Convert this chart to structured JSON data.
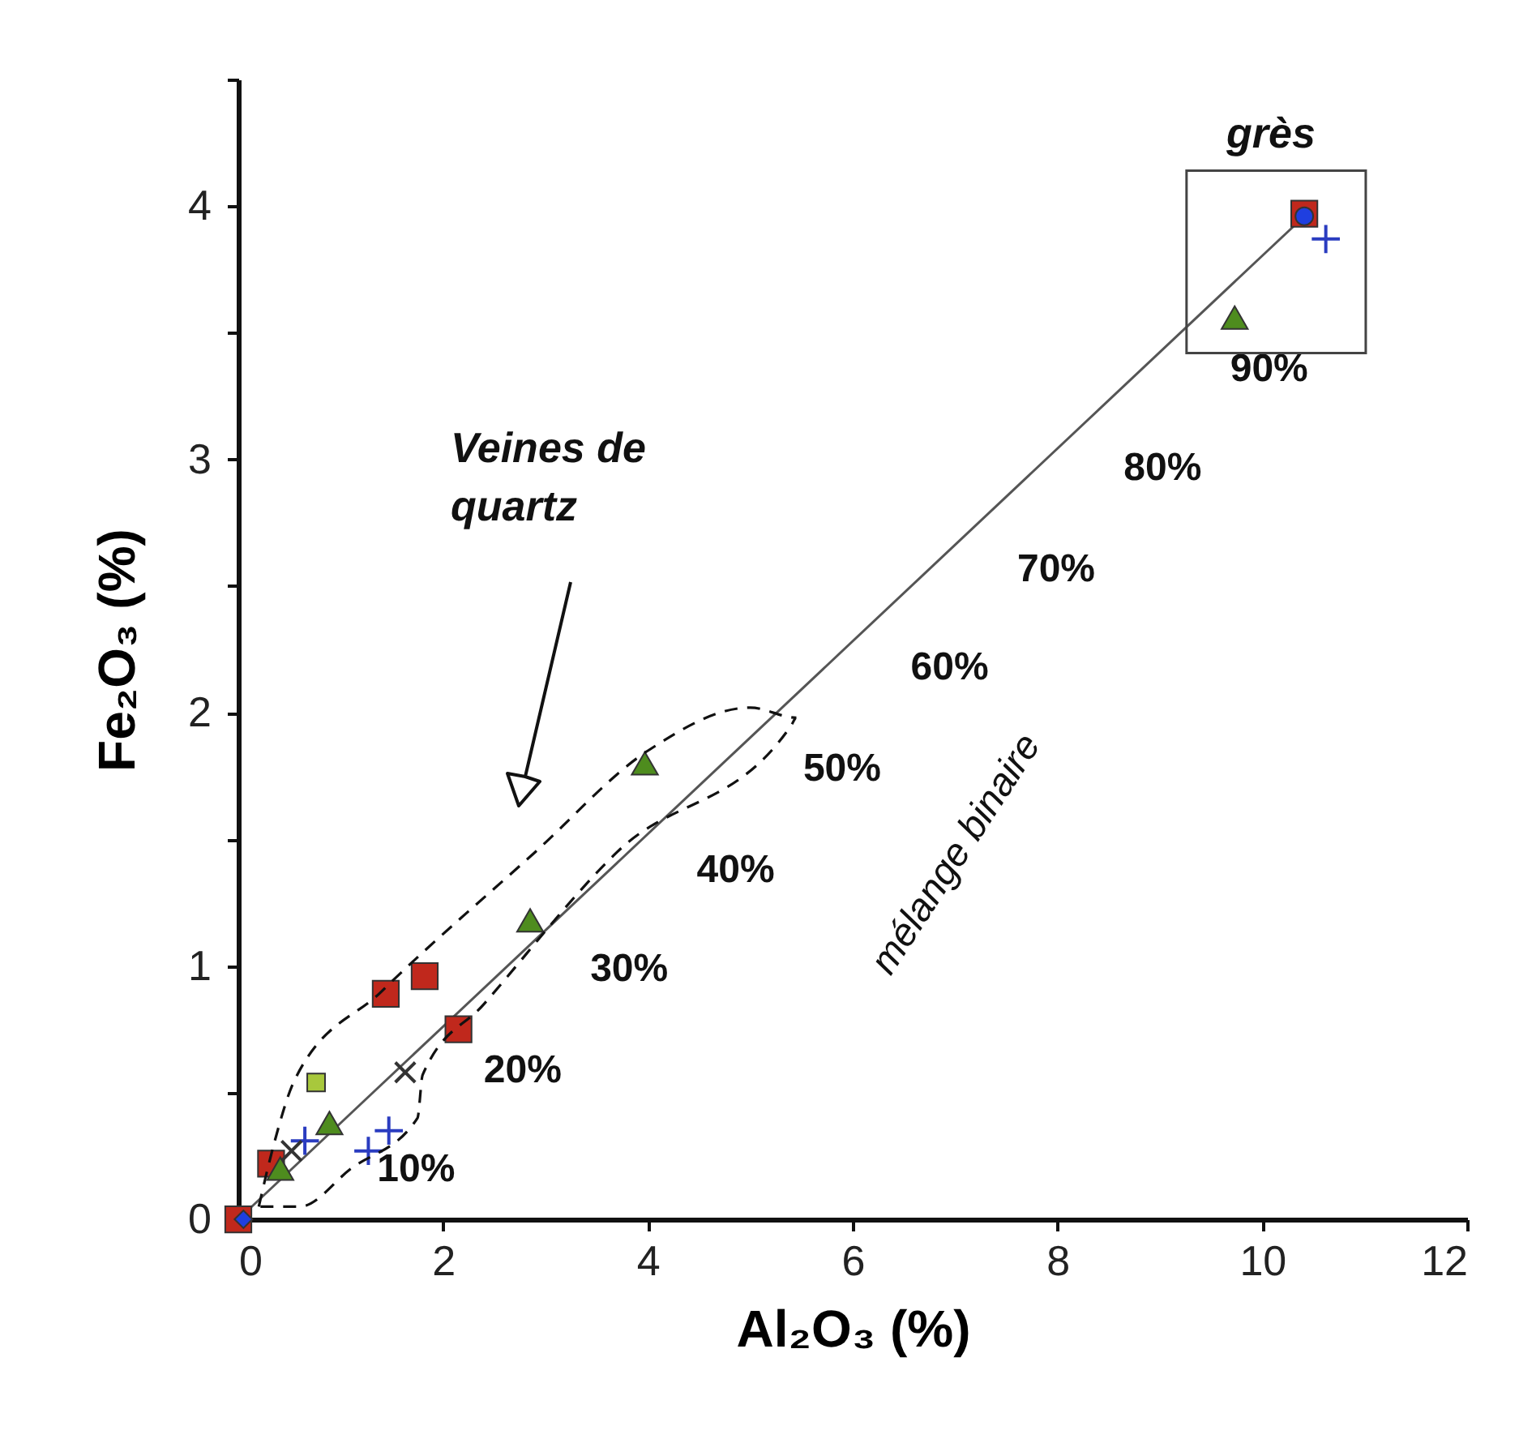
{
  "chart_data": {
    "type": "scatter",
    "xlabel": "Al₂O₃ (%)",
    "ylabel": "Fe₂O₃ (%)",
    "xlim": [
      0,
      12
    ],
    "xticks": [
      0,
      2,
      4,
      6,
      8,
      10,
      12
    ],
    "ylim": [
      0,
      4.5
    ],
    "yticks": [
      0,
      {
        "value": 0.5,
        "label": null
      },
      1,
      {
        "value": 1.5,
        "label": null
      },
      2,
      {
        "value": 2.5,
        "label": null
      },
      3,
      {
        "value": 3.5,
        "label": null
      },
      4,
      {
        "value": 4.5,
        "label": null
      }
    ],
    "grid": false,
    "series": [
      {
        "type": "line",
        "color": "#555555",
        "marker": "none",
        "line_style": "solid",
        "x": [
          0,
          10.41
        ],
        "values": [
          0,
          3.96
        ]
      },
      {
        "color": "#c0281c",
        "marker": "square",
        "x": [
          0.0,
          0.32,
          1.44,
          1.82,
          2.15,
          10.41
        ],
        "values": [
          0.0,
          0.22,
          0.89,
          0.96,
          0.75,
          3.97
        ]
      },
      {
        "color": "#4e8c1e",
        "marker": "triangle",
        "x": [
          0.41,
          0.89,
          2.85,
          3.97,
          9.73
        ],
        "values": [
          0.2,
          0.38,
          1.18,
          1.8,
          3.56
        ]
      },
      {
        "color": "#1f3fe0",
        "marker": "diamond",
        "x": [
          0.05
        ],
        "values": [
          0.0
        ]
      },
      {
        "color": "#1f3fe0",
        "marker": "circle",
        "x": [
          10.41
        ],
        "values": [
          3.96
        ]
      },
      {
        "color": "#2a3cc0",
        "marker": "cross",
        "x": [
          0.65,
          1.27,
          1.47,
          10.62
        ],
        "values": [
          0.31,
          0.27,
          0.35,
          3.87
        ]
      },
      {
        "color": "#333333",
        "marker": "cross",
        "x": [
          0.52,
          1.63
        ],
        "values": [
          0.27,
          0.58
        ]
      },
      {
        "color": "#a8c83c",
        "marker": "square",
        "x": [
          0.76
        ],
        "values": [
          0.54
        ]
      }
    ],
    "annotations": [
      "grès",
      "Veines de\nquartz",
      "mélange binaire",
      {
        "text": "10%",
        "x": 1.04,
        "y": 0.4
      },
      {
        "text": "20%",
        "x": 2.08,
        "y": 0.79
      },
      {
        "text": "30%",
        "x": 3.12,
        "y": 1.19
      },
      {
        "text": "40%",
        "x": 4.16,
        "y": 1.58
      },
      {
        "text": "50%",
        "x": 5.2,
        "y": 1.98
      },
      {
        "text": "60%",
        "x": 6.25,
        "y": 2.38
      },
      {
        "text": "70%",
        "x": 7.29,
        "y": 2.77
      },
      {
        "text": "80%",
        "x": 8.33,
        "y": 3.17
      },
      {
        "text": "90%",
        "x": 9.37,
        "y": 3.56
      }
    ]
  }
}
